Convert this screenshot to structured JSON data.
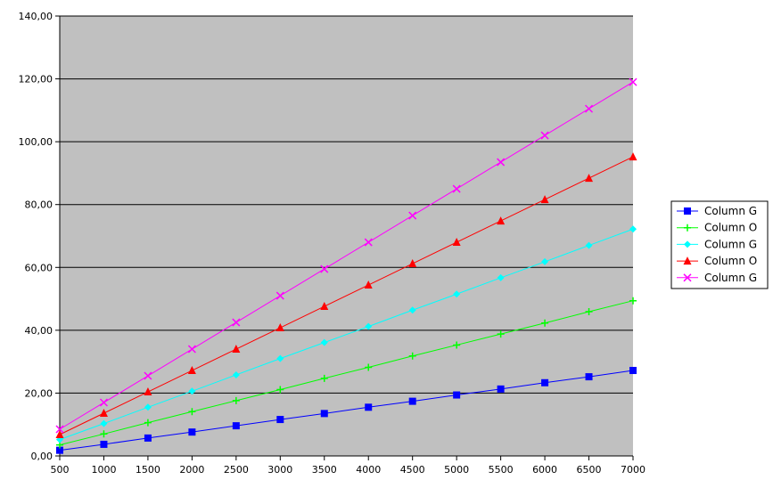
{
  "chart_data": {
    "type": "line",
    "title": "",
    "xlabel": "",
    "ylabel": "",
    "x": [
      500,
      1000,
      1500,
      2000,
      2500,
      3000,
      3500,
      4000,
      4500,
      5000,
      5500,
      6000,
      6500,
      7000
    ],
    "xlim": [
      500,
      7000
    ],
    "ylim": [
      0,
      140
    ],
    "x_tick_labels": [
      "500",
      "1000",
      "1500",
      "2000",
      "2500",
      "3000",
      "3500",
      "4000",
      "4500",
      "5000",
      "5500",
      "6000",
      "6500",
      "7000"
    ],
    "y_tick_values": [
      0,
      20,
      40,
      60,
      80,
      100,
      120,
      140
    ],
    "y_tick_labels": [
      "0,00",
      "20,00",
      "40,00",
      "60,00",
      "80,00",
      "100,00",
      "120,00",
      "140,00"
    ],
    "plot_background": "#c0c0c0",
    "grid": "horizontal",
    "legend_position": "right",
    "series": [
      {
        "name": "Column G",
        "color": "#0000ff",
        "marker": "square",
        "values": [
          1.8,
          3.7,
          5.7,
          7.6,
          9.6,
          11.6,
          13.5,
          15.5,
          17.4,
          19.4,
          21.3,
          23.3,
          25.2,
          27.2
        ]
      },
      {
        "name": "Column O",
        "color": "#00ff00",
        "marker": "plus",
        "values": [
          3.5,
          7.0,
          10.6,
          14.1,
          17.6,
          21.1,
          24.7,
          28.2,
          31.8,
          35.3,
          38.8,
          42.3,
          45.9,
          49.4
        ]
      },
      {
        "name": "Column G",
        "color": "#00ffff",
        "marker": "diamond",
        "values": [
          5.2,
          10.3,
          15.5,
          20.6,
          25.8,
          31.0,
          36.1,
          41.2,
          46.4,
          51.5,
          56.7,
          61.8,
          67.0,
          72.2
        ]
      },
      {
        "name": "Column O",
        "color": "#ff0000",
        "marker": "triangle",
        "values": [
          6.8,
          13.6,
          20.4,
          27.2,
          34.0,
          40.8,
          47.6,
          54.4,
          61.2,
          68.0,
          74.8,
          81.6,
          88.4,
          95.2
        ]
      },
      {
        "name": "Column G",
        "color": "#ff00ff",
        "marker": "x",
        "values": [
          8.5,
          17.0,
          25.5,
          34.0,
          42.5,
          51.0,
          59.5,
          68.0,
          76.5,
          85.0,
          93.5,
          102.0,
          110.5,
          119.0
        ]
      }
    ]
  }
}
